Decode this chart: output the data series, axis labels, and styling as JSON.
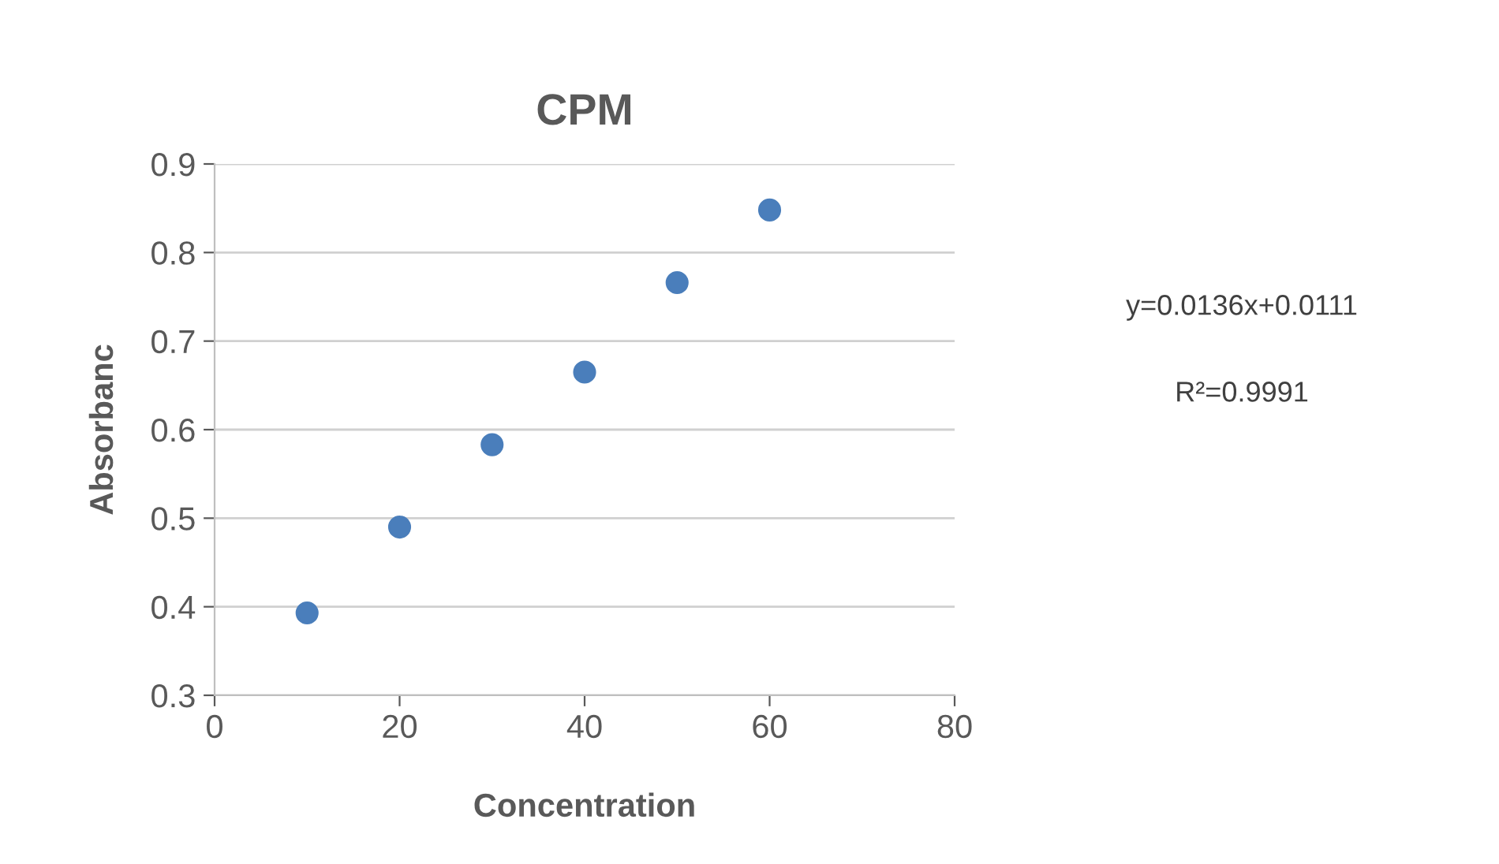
{
  "chart_data": {
    "type": "scatter",
    "title": "CPM",
    "xlabel": "Concentration",
    "ylabel": "Absorbanc",
    "x": [
      10,
      20,
      30,
      40,
      50,
      60
    ],
    "series": [
      {
        "color": "#4a7ebb",
        "values": [
          0.393,
          0.49,
          0.583,
          0.665,
          0.766,
          0.848
        ]
      }
    ],
    "xlim": [
      0,
      80
    ],
    "xticks": [
      0,
      20,
      40,
      60,
      80
    ],
    "ylim": [
      0.3,
      0.9
    ],
    "yticks": [
      0.3,
      0.4,
      0.5,
      0.6,
      0.7,
      0.8,
      0.9
    ],
    "grid": "y",
    "marker": "circle",
    "legend": false,
    "annotations": [
      "y=0.0136x+0.0111",
      "R²=0.9991"
    ]
  }
}
